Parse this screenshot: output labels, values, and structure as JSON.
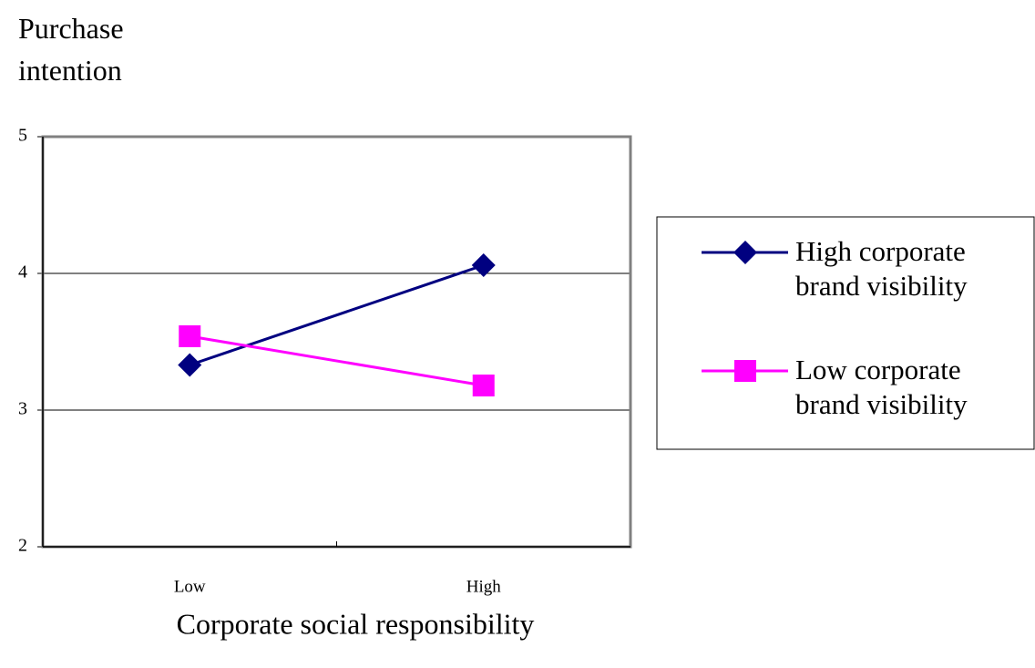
{
  "chart_data": {
    "type": "line",
    "y_label": "Purchase intention",
    "x_label": "Corporate social responsibility",
    "categories": [
      "Low",
      "High"
    ],
    "series": [
      {
        "name": "High corporate brand visibility",
        "color": "#000080",
        "marker": "diamond",
        "values": [
          3.33,
          4.06
        ]
      },
      {
        "name": "Low corporate brand visibility",
        "color": "#ff00ff",
        "marker": "square",
        "values": [
          3.54,
          3.18
        ]
      }
    ],
    "ylim": [
      2,
      5
    ],
    "yticks": [
      2,
      3,
      4,
      5
    ],
    "grid": true,
    "legend": "right"
  }
}
